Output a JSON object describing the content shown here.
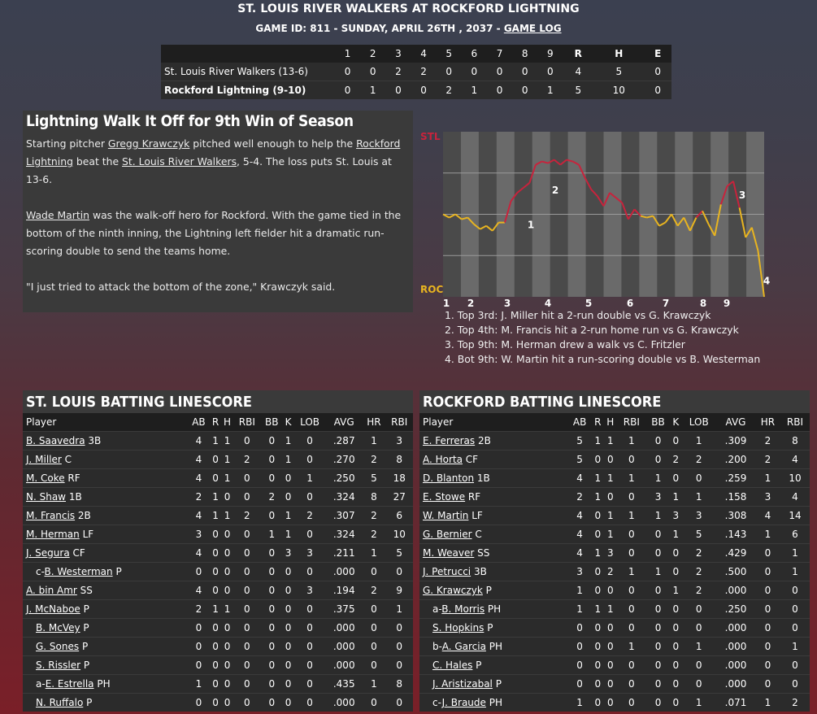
{
  "header": {
    "title": "ST. LOUIS RIVER WALKERS AT ROCKFORD LIGHTNING",
    "subtitle": "GAME ID: 811 - SUNDAY, APRIL 26TH , 2037 - ",
    "game_log": "GAME LOG"
  },
  "linescore": {
    "headers": [
      "1",
      "2",
      "3",
      "4",
      "5",
      "6",
      "7",
      "8",
      "9",
      "R",
      "H",
      "E"
    ],
    "teams": [
      {
        "name": "St. Louis River Walkers (13-6)",
        "scores": [
          "0",
          "0",
          "2",
          "2",
          "0",
          "0",
          "0",
          "0",
          "0",
          "4",
          "5",
          "0"
        ]
      },
      {
        "name": "Rockford Lightning (9-10)",
        "scores": [
          "0",
          "1",
          "0",
          "0",
          "2",
          "1",
          "0",
          "0",
          "1",
          "5",
          "10",
          "0"
        ]
      }
    ]
  },
  "story": {
    "title": "Lightning Walk It Off for 9th Win of Season",
    "p1_a": "Starting pitcher ",
    "p1_link1": "Gregg Krawczyk",
    "p1_b": " pitched well enough to help the ",
    "p1_link2": "Rockford Lightning",
    "p1_c": " beat the ",
    "p1_link3": "St. Louis River Walkers",
    "p1_d": ", 5-4. The loss puts St. Louis at 13-6.",
    "p2_link": "Wade Martin",
    "p2_text": " was the walk-off hero for Rockford. With the game tied in the bottom of the ninth inning, the Lightning left fielder hit a dramatic run-scoring double to send the teams home.",
    "p3": "\"I just tried to attack the bottom of the zone,\" Krawczyk said."
  },
  "chart_data": {
    "type": "line",
    "top_label": "STL",
    "bottom_label": "ROC",
    "innings": [
      "1",
      "2",
      "3",
      "4",
      "5",
      "6",
      "7",
      "8",
      "9"
    ],
    "ylim": [
      0,
      1
    ],
    "y": [
      0.5,
      0.48,
      0.5,
      0.47,
      0.48,
      0.44,
      0.41,
      0.43,
      0.4,
      0.45,
      0.45,
      0.58,
      0.63,
      0.66,
      0.69,
      0.8,
      0.82,
      0.81,
      0.83,
      0.8,
      0.83,
      0.82,
      0.8,
      0.72,
      0.65,
      0.61,
      0.55,
      0.63,
      0.6,
      0.57,
      0.47,
      0.53,
      0.49,
      0.48,
      0.49,
      0.43,
      0.45,
      0.5,
      0.43,
      0.48,
      0.4,
      0.48,
      0.52,
      0.44,
      0.37,
      0.56,
      0.67,
      0.7,
      0.54,
      0.36,
      0.42,
      0.28,
      0.0
    ],
    "colors": {
      "stl": "#c8233c",
      "roc": "#e8b420"
    },
    "markers": [
      {
        "label": "1",
        "y": 0.44
      },
      {
        "label": "2",
        "y": 0.65
      },
      {
        "label": "3",
        "y": 0.62
      },
      {
        "label": "4",
        "y": 0.1
      }
    ],
    "notes": [
      "1. Top 3rd: J. Miller hit a 2-run double vs G. Krawczyk",
      "2. Top 4th: M. Francis hit a 2-run home run vs G. Krawczyk",
      "3. Top 9th: M. Herman drew a walk vs C. Fritzler",
      "4. Bot 9th: W. Martin hit a run-scoring double vs B. Westerman"
    ]
  },
  "batting": {
    "columns": [
      "Player",
      "AB",
      "R",
      "H",
      "RBI",
      "BB",
      "K",
      "LOB",
      "AVG",
      "HR",
      "RBI"
    ],
    "stl": {
      "title": "ST. LOUIS BATTING LINESCORE",
      "rows": [
        {
          "prefix": "",
          "name": "B. Saavedra",
          "pos": " 3B",
          "stats": [
            "4",
            "1",
            "1",
            "0",
            "0",
            "1",
            "0",
            ".287",
            "1",
            "3"
          ]
        },
        {
          "prefix": "",
          "name": "J. Miller",
          "pos": " C",
          "stats": [
            "4",
            "0",
            "1",
            "2",
            "0",
            "1",
            "0",
            ".270",
            "2",
            "8"
          ]
        },
        {
          "prefix": "",
          "name": "M. Coke",
          "pos": " RF",
          "stats": [
            "4",
            "0",
            "1",
            "0",
            "0",
            "0",
            "1",
            ".250",
            "5",
            "18"
          ]
        },
        {
          "prefix": "",
          "name": "N. Shaw",
          "pos": " 1B",
          "stats": [
            "2",
            "1",
            "0",
            "0",
            "2",
            "0",
            "0",
            ".324",
            "8",
            "27"
          ]
        },
        {
          "prefix": "",
          "name": "M. Francis",
          "pos": " 2B",
          "stats": [
            "4",
            "1",
            "1",
            "2",
            "0",
            "1",
            "2",
            ".307",
            "2",
            "6"
          ]
        },
        {
          "prefix": "",
          "name": "M. Herman",
          "pos": " LF",
          "stats": [
            "3",
            "0",
            "0",
            "0",
            "1",
            "1",
            "0",
            ".324",
            "2",
            "10"
          ]
        },
        {
          "prefix": "",
          "name": "J. Segura",
          "pos": " CF",
          "stats": [
            "4",
            "0",
            "0",
            "0",
            "0",
            "3",
            "3",
            ".211",
            "1",
            "5"
          ]
        },
        {
          "prefix": "c-",
          "name": "B. Westerman",
          "pos": " P",
          "stats": [
            "0",
            "0",
            "0",
            "0",
            "0",
            "0",
            "0",
            ".000",
            "0",
            "0"
          ],
          "sub": true
        },
        {
          "prefix": "",
          "name": "A. bin Amr",
          "pos": " SS",
          "stats": [
            "4",
            "0",
            "0",
            "0",
            "0",
            "0",
            "3",
            ".194",
            "2",
            "9"
          ]
        },
        {
          "prefix": "",
          "name": "J. McNaboe",
          "pos": " P",
          "stats": [
            "2",
            "1",
            "1",
            "0",
            "0",
            "0",
            "0",
            ".375",
            "0",
            "1"
          ]
        },
        {
          "prefix": "",
          "name": "B. McVey",
          "pos": " P",
          "stats": [
            "0",
            "0",
            "0",
            "0",
            "0",
            "0",
            "0",
            ".000",
            "0",
            "0"
          ],
          "sub": true
        },
        {
          "prefix": "",
          "name": "G. Sones",
          "pos": " P",
          "stats": [
            "0",
            "0",
            "0",
            "0",
            "0",
            "0",
            "0",
            ".000",
            "0",
            "0"
          ],
          "sub": true
        },
        {
          "prefix": "",
          "name": "S. Rissler",
          "pos": " P",
          "stats": [
            "0",
            "0",
            "0",
            "0",
            "0",
            "0",
            "0",
            ".000",
            "0",
            "0"
          ],
          "sub": true
        },
        {
          "prefix": "a-",
          "name": "E. Estrella",
          "pos": " PH",
          "stats": [
            "1",
            "0",
            "0",
            "0",
            "0",
            "0",
            "0",
            ".435",
            "1",
            "8"
          ],
          "sub": true
        },
        {
          "prefix": "",
          "name": "N. Ruffalo",
          "pos": " P",
          "stats": [
            "0",
            "0",
            "0",
            "0",
            "0",
            "0",
            "0",
            ".000",
            "0",
            "0"
          ],
          "sub": true
        }
      ]
    },
    "roc": {
      "title": "ROCKFORD BATTING LINESCORE",
      "rows": [
        {
          "prefix": "",
          "name": "E. Ferreras",
          "pos": " 2B",
          "stats": [
            "5",
            "1",
            "1",
            "1",
            "0",
            "0",
            "1",
            ".309",
            "2",
            "8"
          ]
        },
        {
          "prefix": "",
          "name": "A. Horta",
          "pos": " CF",
          "stats": [
            "5",
            "0",
            "0",
            "0",
            "0",
            "2",
            "2",
            ".200",
            "2",
            "4"
          ]
        },
        {
          "prefix": "",
          "name": "D. Blanton",
          "pos": " 1B",
          "stats": [
            "4",
            "1",
            "1",
            "1",
            "1",
            "0",
            "0",
            ".259",
            "1",
            "10"
          ]
        },
        {
          "prefix": "",
          "name": "E. Stowe",
          "pos": " RF",
          "stats": [
            "2",
            "1",
            "0",
            "0",
            "3",
            "1",
            "1",
            ".158",
            "3",
            "4"
          ]
        },
        {
          "prefix": "",
          "name": "W. Martin",
          "pos": " LF",
          "stats": [
            "4",
            "0",
            "1",
            "1",
            "1",
            "3",
            "3",
            ".308",
            "4",
            "14"
          ]
        },
        {
          "prefix": "",
          "name": "G. Bernier",
          "pos": " C",
          "stats": [
            "4",
            "0",
            "1",
            "0",
            "0",
            "1",
            "5",
            ".143",
            "1",
            "6"
          ]
        },
        {
          "prefix": "",
          "name": "M. Weaver",
          "pos": " SS",
          "stats": [
            "4",
            "1",
            "3",
            "0",
            "0",
            "0",
            "2",
            ".429",
            "0",
            "1"
          ]
        },
        {
          "prefix": "",
          "name": "J. Petrucci",
          "pos": " 3B",
          "stats": [
            "3",
            "0",
            "2",
            "1",
            "1",
            "0",
            "2",
            ".500",
            "0",
            "1"
          ]
        },
        {
          "prefix": "",
          "name": "G. Krawczyk",
          "pos": " P",
          "stats": [
            "1",
            "0",
            "0",
            "0",
            "0",
            "1",
            "2",
            ".000",
            "0",
            "0"
          ]
        },
        {
          "prefix": "a-",
          "name": "B. Morris",
          "pos": " PH",
          "stats": [
            "1",
            "1",
            "1",
            "0",
            "0",
            "0",
            "0",
            ".250",
            "0",
            "0"
          ],
          "sub": true
        },
        {
          "prefix": "",
          "name": "S. Hopkins",
          "pos": " P",
          "stats": [
            "0",
            "0",
            "0",
            "0",
            "0",
            "0",
            "0",
            ".000",
            "0",
            "0"
          ],
          "sub": true
        },
        {
          "prefix": "b-",
          "name": "A. Garcia",
          "pos": " PH",
          "stats": [
            "0",
            "0",
            "0",
            "1",
            "0",
            "0",
            "1",
            ".000",
            "0",
            "1"
          ],
          "sub": true
        },
        {
          "prefix": "",
          "name": "C. Hales",
          "pos": " P",
          "stats": [
            "0",
            "0",
            "0",
            "0",
            "0",
            "0",
            "0",
            ".000",
            "0",
            "0"
          ],
          "sub": true
        },
        {
          "prefix": "",
          "name": "J. Aristizabal",
          "pos": " P",
          "stats": [
            "0",
            "0",
            "0",
            "0",
            "0",
            "0",
            "0",
            ".000",
            "0",
            "0"
          ],
          "sub": true
        },
        {
          "prefix": "c-",
          "name": "J. Braude",
          "pos": " PH",
          "stats": [
            "1",
            "0",
            "0",
            "0",
            "0",
            "0",
            "1",
            ".071",
            "1",
            "2"
          ],
          "sub": true
        }
      ]
    }
  }
}
